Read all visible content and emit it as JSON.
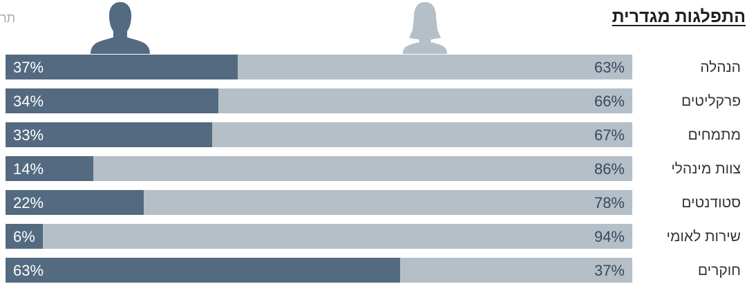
{
  "corner_text": "תר",
  "icons": {
    "male": "male-silhouette-icon",
    "female": "female-silhouette-icon"
  },
  "colors": {
    "male": "#536a80",
    "female": "#b5bfc8",
    "text_dark": "#333333"
  },
  "chart_data": {
    "type": "bar",
    "stacked": true,
    "orientation": "horizontal",
    "title": "התפלגות מגדרית",
    "xlim": [
      0,
      100
    ],
    "unit": "%",
    "categories": [
      "הנהלה",
      "פרקליטים",
      "מתמחים",
      "צוות מינהלי",
      "סטודנטים",
      "שירות לאומי",
      "חוקרים"
    ],
    "series": [
      {
        "color": "#536a80",
        "icon": "male-silhouette-icon",
        "values": [
          37,
          34,
          33,
          14,
          22,
          6,
          63
        ]
      },
      {
        "color": "#b5bfc8",
        "icon": "female-silhouette-icon",
        "values": [
          63,
          66,
          67,
          86,
          78,
          94,
          37
        ]
      }
    ],
    "value_labels": {
      "male": [
        "37%",
        "34%",
        "33%",
        "14%",
        "22%",
        "6%",
        "63%"
      ],
      "female": [
        "63%",
        "66%",
        "67%",
        "86%",
        "78%",
        "94%",
        "37%"
      ]
    },
    "legend": "icons-top",
    "grid": false
  }
}
